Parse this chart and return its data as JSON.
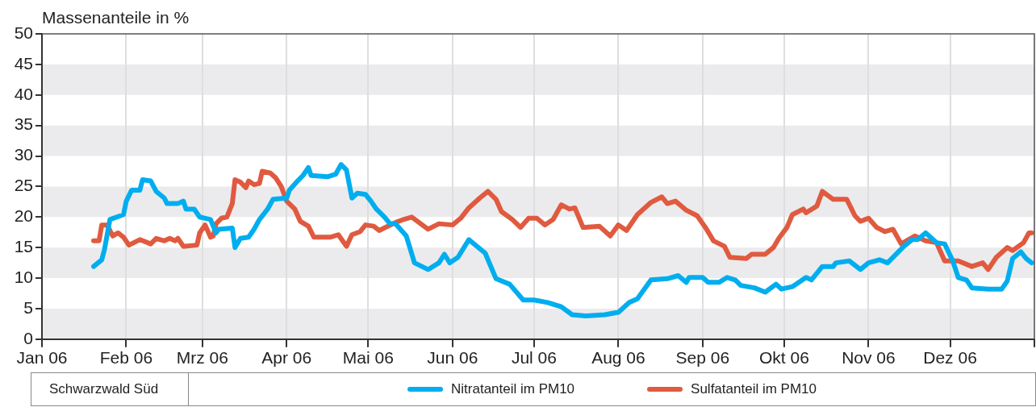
{
  "chart_data": {
    "type": "line",
    "ylabel": "Massenanteile in %",
    "annotations": [
      "Schwarzwald Süd"
    ],
    "xlim": [
      "2006-01-01",
      "2007-01-01"
    ],
    "xticks": [
      {
        "value": "2006-01-01",
        "label": "Jan 06"
      },
      {
        "value": "2006-02-01",
        "label": "Feb 06"
      },
      {
        "value": "2006-03-01",
        "label": "Mrz 06"
      },
      {
        "value": "2006-04-01",
        "label": "Apr 06"
      },
      {
        "value": "2006-05-01",
        "label": "Mai 06"
      },
      {
        "value": "2006-06-01",
        "label": "Jun 06"
      },
      {
        "value": "2006-07-01",
        "label": "Jul 06"
      },
      {
        "value": "2006-08-01",
        "label": "Aug 06"
      },
      {
        "value": "2006-09-01",
        "label": "Sep 06"
      },
      {
        "value": "2006-10-01",
        "label": "Okt 06"
      },
      {
        "value": "2006-11-01",
        "label": "Nov 06"
      },
      {
        "value": "2006-12-01",
        "label": "Dez 06"
      },
      {
        "value": "2007-01-01",
        "label": null
      }
    ],
    "ylim": [
      0,
      50
    ],
    "yticks": [
      0,
      5,
      10,
      15,
      20,
      25,
      30,
      35,
      40,
      45,
      50
    ],
    "grid": "x",
    "legend": "bottom",
    "marker": "none",
    "line_style": "solid",
    "bands": [
      {
        "axis": "y",
        "from": 0,
        "to": 5,
        "color": "#ebebed"
      },
      {
        "axis": "y",
        "from": 10,
        "to": 15,
        "color": "#ebebed"
      },
      {
        "axis": "y",
        "from": 20,
        "to": 25,
        "color": "#ebebed"
      },
      {
        "axis": "y",
        "from": 30,
        "to": 35,
        "color": "#ebebed"
      },
      {
        "axis": "y",
        "from": 40,
        "to": 45,
        "color": "#ebebed"
      }
    ],
    "series": [
      {
        "name": "Nitratanteil im PM10",
        "color": "#00aeef",
        "x": [
          "2006-01-20",
          "2006-01-23",
          "2006-01-24",
          "2006-01-26",
          "2006-01-31",
          "2006-02-01",
          "2006-02-03",
          "2006-02-06",
          "2006-02-07",
          "2006-02-10",
          "2006-02-12",
          "2006-02-15",
          "2006-02-16",
          "2006-02-20",
          "2006-02-22",
          "2006-02-23",
          "2006-02-26",
          "2006-02-28",
          "2006-03-04",
          "2006-03-06",
          "2006-03-07",
          "2006-03-12",
          "2006-03-13",
          "2006-03-15",
          "2006-03-18",
          "2006-03-20",
          "2006-03-22",
          "2006-03-25",
          "2006-03-27",
          "2006-04-01",
          "2006-04-02",
          "2006-04-05",
          "2006-04-07",
          "2006-04-09",
          "2006-04-10",
          "2006-04-16",
          "2006-04-19",
          "2006-04-21",
          "2006-04-23",
          "2006-04-25",
          "2006-04-27",
          "2006-04-30",
          "2006-05-02",
          "2006-05-04",
          "2006-05-07",
          "2006-05-09",
          "2006-05-11",
          "2006-05-15",
          "2006-05-18",
          "2006-05-23",
          "2006-05-27",
          "2006-05-29",
          "2006-05-31",
          "2006-06-03",
          "2006-06-07",
          "2006-06-13",
          "2006-06-17",
          "2006-06-22",
          "2006-06-27",
          "2006-07-01",
          "2006-07-06",
          "2006-07-11",
          "2006-07-15",
          "2006-07-20",
          "2006-07-27",
          "2006-08-01",
          "2006-08-05",
          "2006-08-08",
          "2006-08-13",
          "2006-08-19",
          "2006-08-23",
          "2006-08-26",
          "2006-08-27",
          "2006-09-01",
          "2006-09-03",
          "2006-09-07",
          "2006-09-10",
          "2006-09-13",
          "2006-09-15",
          "2006-09-20",
          "2006-09-24",
          "2006-09-28",
          "2006-09-30",
          "2006-10-04",
          "2006-10-09",
          "2006-10-11",
          "2006-10-15",
          "2006-10-19",
          "2006-10-20",
          "2006-10-25",
          "2006-10-29",
          "2006-11-01",
          "2006-11-05",
          "2006-11-08",
          "2006-11-14",
          "2006-11-17",
          "2006-11-19",
          "2006-11-22",
          "2006-11-26",
          "2006-11-29",
          "2006-12-02",
          "2006-12-04",
          "2006-12-07",
          "2006-12-09",
          "2006-12-15",
          "2006-12-20",
          "2006-12-22",
          "2006-12-24",
          "2006-12-27",
          "2006-12-29",
          "2006-12-31"
        ],
        "values": [
          11.9,
          13.0,
          14.7,
          19.6,
          20.4,
          22.6,
          24.4,
          24.4,
          26.1,
          25.9,
          24.2,
          23.1,
          22.2,
          22.2,
          22.6,
          21.3,
          21.3,
          20.0,
          19.6,
          17.4,
          18.0,
          18.2,
          15.0,
          16.5,
          16.7,
          18.0,
          19.6,
          21.3,
          22.9,
          23.1,
          24.4,
          25.9,
          26.8,
          28.1,
          26.8,
          26.6,
          27.0,
          28.6,
          27.7,
          23.1,
          23.9,
          23.7,
          22.6,
          21.3,
          20.0,
          18.9,
          18.9,
          16.9,
          12.5,
          11.4,
          12.5,
          13.9,
          12.5,
          13.4,
          16.3,
          14.1,
          9.9,
          9.0,
          6.4,
          6.4,
          6.0,
          5.3,
          4.0,
          3.8,
          4.0,
          4.4,
          6.0,
          6.6,
          9.7,
          9.9,
          10.4,
          9.3,
          10.1,
          10.1,
          9.3,
          9.3,
          10.1,
          9.7,
          8.8,
          8.4,
          7.7,
          9.0,
          8.2,
          8.6,
          10.1,
          9.7,
          11.9,
          11.9,
          12.5,
          12.8,
          11.4,
          12.5,
          13.0,
          12.5,
          15.2,
          16.3,
          16.3,
          17.4,
          15.8,
          15.6,
          12.8,
          10.1,
          9.7,
          8.4,
          8.2,
          8.2,
          9.5,
          13.2,
          14.3,
          13.2,
          12.5
        ]
      },
      {
        "name": "Sulfatanteil im PM10",
        "color": "#e05a40",
        "x": [
          "2006-01-20",
          "2006-01-22",
          "2006-01-23",
          "2006-01-25",
          "2006-01-27",
          "2006-01-29",
          "2006-01-31",
          "2006-02-02",
          "2006-02-06",
          "2006-02-10",
          "2006-02-12",
          "2006-02-15",
          "2006-02-17",
          "2006-02-19",
          "2006-02-20",
          "2006-02-22",
          "2006-02-27",
          "2006-02-28",
          "2006-03-02",
          "2006-03-04",
          "2006-03-05",
          "2006-03-06",
          "2006-03-08",
          "2006-03-10",
          "2006-03-12",
          "2006-03-13",
          "2006-03-15",
          "2006-03-17",
          "2006-03-18",
          "2006-03-20",
          "2006-03-22",
          "2006-03-23",
          "2006-03-26",
          "2006-03-28",
          "2006-03-30",
          "2006-04-01",
          "2006-04-04",
          "2006-04-06",
          "2006-04-09",
          "2006-04-11",
          "2006-04-17",
          "2006-04-20",
          "2006-04-23",
          "2006-04-25",
          "2006-04-28",
          "2006-04-30",
          "2006-05-03",
          "2006-05-05",
          "2006-05-11",
          "2006-05-14",
          "2006-05-17",
          "2006-05-23",
          "2006-05-27",
          "2006-06-01",
          "2006-06-04",
          "2006-06-07",
          "2006-06-11",
          "2006-06-14",
          "2006-06-17",
          "2006-06-19",
          "2006-06-23",
          "2006-06-26",
          "2006-06-29",
          "2006-07-02",
          "2006-07-05",
          "2006-07-08",
          "2006-07-11",
          "2006-07-14",
          "2006-07-16",
          "2006-07-19",
          "2006-07-25",
          "2006-07-29",
          "2006-08-01",
          "2006-08-04",
          "2006-08-08",
          "2006-08-13",
          "2006-08-17",
          "2006-08-19",
          "2006-08-22",
          "2006-08-26",
          "2006-08-30",
          "2006-09-02",
          "2006-09-05",
          "2006-09-09",
          "2006-09-11",
          "2006-09-17",
          "2006-09-19",
          "2006-09-24",
          "2006-09-27",
          "2006-09-29",
          "2006-10-02",
          "2006-10-04",
          "2006-10-08",
          "2006-10-09",
          "2006-10-13",
          "2006-10-15",
          "2006-10-19",
          "2006-10-24",
          "2006-10-27",
          "2006-10-29",
          "2006-11-01",
          "2006-11-04",
          "2006-11-07",
          "2006-11-10",
          "2006-11-13",
          "2006-11-18",
          "2006-11-22",
          "2006-11-26",
          "2006-11-29",
          "2006-12-04",
          "2006-12-09",
          "2006-12-13",
          "2006-12-15",
          "2006-12-18",
          "2006-12-22",
          "2006-12-24",
          "2006-12-28",
          "2006-12-30",
          "2006-12-31"
        ],
        "values": [
          16.1,
          16.1,
          18.7,
          18.7,
          16.9,
          17.4,
          16.7,
          15.4,
          16.3,
          15.6,
          16.5,
          16.1,
          16.5,
          16.1,
          16.5,
          15.2,
          15.4,
          17.4,
          18.7,
          16.7,
          16.9,
          18.9,
          19.8,
          20.0,
          22.2,
          26.1,
          25.7,
          24.8,
          25.9,
          25.3,
          25.5,
          27.5,
          27.2,
          26.4,
          25.0,
          22.6,
          21.3,
          19.3,
          18.5,
          16.7,
          16.7,
          17.1,
          15.2,
          17.1,
          17.6,
          18.7,
          18.5,
          17.8,
          19.1,
          19.6,
          20.0,
          18.0,
          18.9,
          18.7,
          19.8,
          21.5,
          23.1,
          24.2,
          22.9,
          20.9,
          19.6,
          18.3,
          19.8,
          19.8,
          18.7,
          19.6,
          22.0,
          21.3,
          21.5,
          18.3,
          18.5,
          16.9,
          18.7,
          17.8,
          20.4,
          22.4,
          23.3,
          22.2,
          22.6,
          21.1,
          20.2,
          18.3,
          16.1,
          15.2,
          13.4,
          13.2,
          13.9,
          13.9,
          15.0,
          16.5,
          18.3,
          20.4,
          21.3,
          20.7,
          21.8,
          24.2,
          22.9,
          22.9,
          20.2,
          19.3,
          19.8,
          18.3,
          17.6,
          18.0,
          15.6,
          16.9,
          16.1,
          15.8,
          12.8,
          12.8,
          11.9,
          12.5,
          11.4,
          13.4,
          15.0,
          14.5,
          15.8,
          17.4,
          17.4
        ]
      }
    ]
  }
}
